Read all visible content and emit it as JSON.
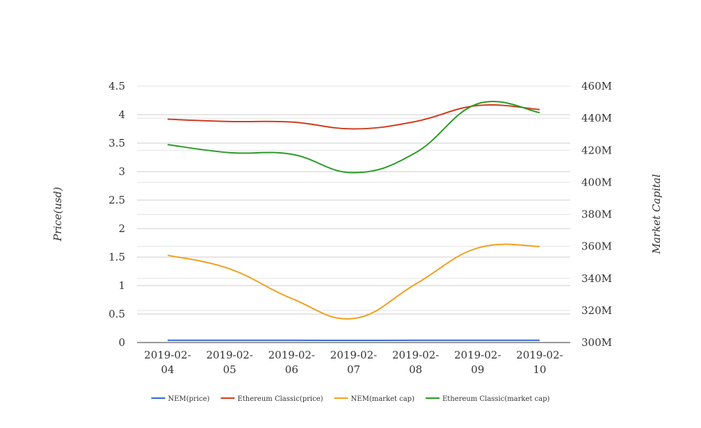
{
  "chart_data": {
    "type": "line",
    "title": "",
    "x": [
      "2019-02-04",
      "2019-02-05",
      "2019-02-06",
      "2019-02-07",
      "2019-02-08",
      "2019-02-09",
      "2019-02-10"
    ],
    "x_tick_lines": [
      [
        "2019-02-",
        "04"
      ],
      [
        "2019-02-",
        "05"
      ],
      [
        "2019-02-",
        "06"
      ],
      [
        "2019-02-",
        "07"
      ],
      [
        "2019-02-",
        "08"
      ],
      [
        "2019-02-",
        "09"
      ],
      [
        "2019-02-",
        "10"
      ]
    ],
    "y_left": {
      "label": "Price(usd)",
      "range": [
        0,
        4.5
      ],
      "ticks": [
        "0",
        "0.5",
        "1",
        "1.5",
        "2",
        "2.5",
        "3",
        "3.5",
        "4",
        "4.5"
      ],
      "tick_values": [
        0,
        0.5,
        1,
        1.5,
        2,
        2.5,
        3,
        3.5,
        4,
        4.5
      ]
    },
    "y_right": {
      "label": "Market Capital",
      "range": [
        300000000,
        460000000
      ],
      "ticks": [
        "300M",
        "320M",
        "340M",
        "360M",
        "380M",
        "400M",
        "420M",
        "440M",
        "460M"
      ],
      "tick_values": [
        300000000,
        320000000,
        340000000,
        360000000,
        380000000,
        400000000,
        420000000,
        440000000,
        460000000
      ]
    },
    "grid": true,
    "legend_position": "bottom",
    "series": [
      {
        "name": "NEM(price)",
        "axis": "left",
        "color": "#3366cc",
        "values": [
          0.04,
          0.04,
          0.039,
          0.038,
          0.039,
          0.04,
          0.04
        ]
      },
      {
        "name": "Ethereum Classic(price)",
        "axis": "left",
        "color": "#d03c1c",
        "values": [
          3.92,
          3.88,
          3.87,
          3.75,
          3.88,
          4.16,
          4.09
        ]
      },
      {
        "name": "NEM(market cap)",
        "axis": "right",
        "color": "#f0a020",
        "values": [
          354500000,
          346000000,
          327500000,
          315000000,
          336500000,
          359000000,
          360000000
        ]
      },
      {
        "name": "Ethereum Classic(market cap)",
        "axis": "right",
        "color": "#2a9a25",
        "values": [
          423500000,
          418500000,
          417500000,
          406000000,
          418500000,
          449000000,
          443500000
        ]
      }
    ]
  }
}
